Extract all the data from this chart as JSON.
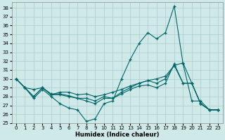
{
  "xlabel": "Humidex (Indice chaleur)",
  "xlim": [
    -0.5,
    23.5
  ],
  "ylim": [
    25,
    38.6
  ],
  "yticks": [
    25,
    26,
    27,
    28,
    29,
    30,
    31,
    32,
    33,
    34,
    35,
    36,
    37,
    38
  ],
  "xticks": [
    0,
    1,
    2,
    3,
    4,
    5,
    6,
    7,
    8,
    9,
    10,
    11,
    12,
    13,
    14,
    15,
    16,
    17,
    18,
    19,
    20,
    21,
    22,
    23
  ],
  "bg_color": "#cfe9e9",
  "grid_color": "#b0d0d0",
  "line_color": "#006666",
  "lines": [
    {
      "x": [
        0,
        1,
        2,
        3,
        4,
        5,
        6,
        7,
        8,
        9,
        10,
        11,
        12,
        13,
        14,
        15,
        16,
        17,
        18,
        19,
        20,
        21,
        22,
        23
      ],
      "y": [
        30,
        29,
        27.8,
        28.8,
        28.0,
        27.2,
        26.7,
        26.5,
        25.2,
        25.5,
        27.2,
        27.5,
        30.0,
        32.2,
        34.0,
        35.2,
        34.5,
        35.2,
        38.2,
        31.7,
        27.5,
        27.5,
        26.5,
        26.5
      ]
    },
    {
      "x": [
        0,
        1,
        2,
        3,
        4,
        5,
        6,
        7,
        8,
        9,
        10,
        11,
        12,
        13,
        14,
        15,
        16,
        17,
        18,
        19,
        20,
        21,
        22,
        23
      ],
      "y": [
        30,
        29,
        28.8,
        29.0,
        28.2,
        28.5,
        28.5,
        28.2,
        28.3,
        28.0,
        28.2,
        28.5,
        28.8,
        29.2,
        29.5,
        29.8,
        30.0,
        30.3,
        31.5,
        31.8,
        29.5,
        27.2,
        26.5,
        26.5
      ]
    },
    {
      "x": [
        0,
        1,
        2,
        3,
        4,
        5,
        6,
        7,
        8,
        9,
        10,
        11,
        12,
        13,
        14,
        15,
        16,
        17,
        18,
        19,
        20,
        21,
        22,
        23
      ],
      "y": [
        30,
        29,
        28.0,
        29.0,
        28.2,
        28.2,
        28.0,
        27.8,
        27.8,
        27.5,
        28.0,
        27.8,
        28.5,
        29.0,
        29.5,
        29.8,
        29.5,
        30.0,
        31.5,
        29.5,
        29.5,
        27.2,
        26.5,
        26.5
      ]
    },
    {
      "x": [
        0,
        1,
        2,
        3,
        4,
        5,
        6,
        7,
        8,
        9,
        10,
        11,
        12,
        13,
        14,
        15,
        16,
        17,
        18,
        19,
        20,
        21,
        22,
        23
      ],
      "y": [
        30,
        29,
        28.0,
        29.0,
        28.3,
        28.3,
        28.1,
        27.8,
        27.5,
        27.2,
        27.8,
        27.8,
        28.3,
        28.8,
        29.2,
        29.3,
        29.0,
        29.5,
        31.7,
        29.5,
        29.5,
        27.2,
        26.5,
        26.5
      ]
    }
  ]
}
